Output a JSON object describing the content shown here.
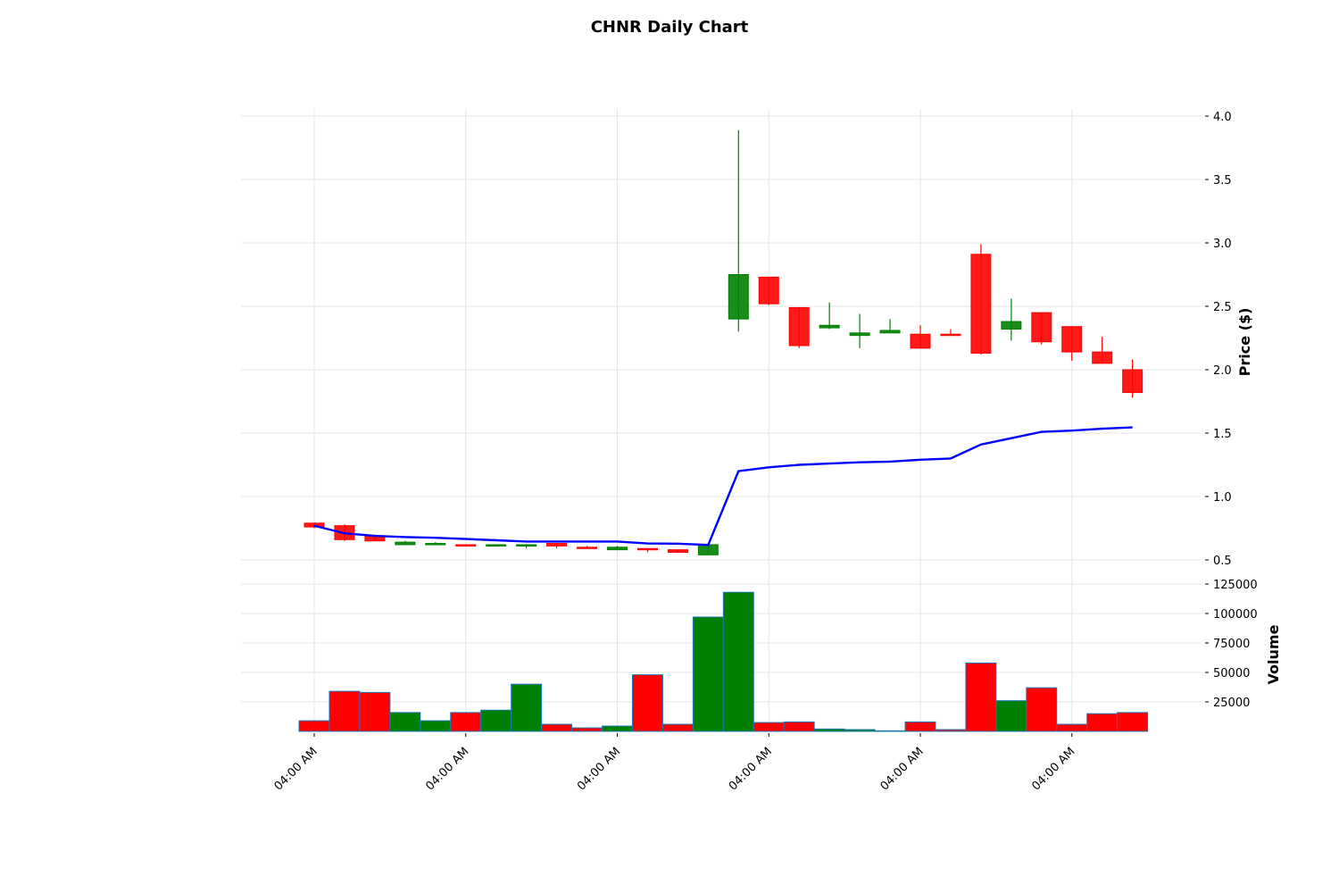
{
  "chart_data": {
    "title": "CHNR Daily Chart",
    "type": "candlestick",
    "price_axis": {
      "label": "Price ($)",
      "ylim": [
        0.5,
        4.0
      ],
      "ticks": [
        0.5,
        1.0,
        1.5,
        2.0,
        2.5,
        3.0,
        3.5,
        4.0
      ],
      "tick_labels": [
        "0.5",
        "1.0",
        "1.5",
        "2.0",
        "2.5",
        "3.0",
        "3.5",
        "4.0"
      ]
    },
    "volume_axis": {
      "label": "Volume",
      "ylim": [
        0,
        125000
      ],
      "ticks": [
        25000,
        50000,
        75000,
        100000,
        125000
      ],
      "tick_labels": [
        "25000",
        "50000",
        "75000",
        "100000",
        "125000"
      ]
    },
    "x_ticks": {
      "at_index": [
        0,
        5,
        10,
        15,
        20,
        25
      ],
      "labels": [
        "04:00 AM",
        "04:00 AM",
        "04:00 AM",
        "04:00 AM",
        "04:00 AM",
        "04:00 AM"
      ]
    },
    "candles": [
      {
        "open": 0.79,
        "high": 0.79,
        "low": 0.75,
        "close": 0.76,
        "volume": 9000,
        "direction": "down"
      },
      {
        "open": 0.77,
        "high": 0.78,
        "low": 0.65,
        "close": 0.66,
        "volume": 34000,
        "direction": "down"
      },
      {
        "open": 0.69,
        "high": 0.7,
        "low": 0.65,
        "close": 0.65,
        "volume": 33000,
        "direction": "down"
      },
      {
        "open": 0.62,
        "high": 0.65,
        "low": 0.62,
        "close": 0.64,
        "volume": 16000,
        "direction": "up"
      },
      {
        "open": 0.62,
        "high": 0.64,
        "low": 0.62,
        "close": 0.63,
        "volume": 9000,
        "direction": "up"
      },
      {
        "open": 0.62,
        "high": 0.62,
        "low": 0.61,
        "close": 0.61,
        "volume": 16000,
        "direction": "down"
      },
      {
        "open": 0.61,
        "high": 0.62,
        "low": 0.61,
        "close": 0.62,
        "volume": 18000,
        "direction": "up"
      },
      {
        "open": 0.61,
        "high": 0.62,
        "low": 0.59,
        "close": 0.62,
        "volume": 40000,
        "direction": "up"
      },
      {
        "open": 0.63,
        "high": 0.63,
        "low": 0.59,
        "close": 0.61,
        "volume": 6000,
        "direction": "down"
      },
      {
        "open": 0.6,
        "high": 0.61,
        "low": 0.59,
        "close": 0.59,
        "volume": 3000,
        "direction": "down"
      },
      {
        "open": 0.58,
        "high": 0.61,
        "low": 0.58,
        "close": 0.6,
        "volume": 4500,
        "direction": "up"
      },
      {
        "open": 0.59,
        "high": 0.59,
        "low": 0.56,
        "close": 0.58,
        "volume": 48000,
        "direction": "down"
      },
      {
        "open": 0.58,
        "high": 0.58,
        "low": 0.56,
        "close": 0.56,
        "volume": 6000,
        "direction": "down"
      },
      {
        "open": 0.54,
        "high": 0.62,
        "low": 0.54,
        "close": 0.62,
        "volume": 97000,
        "direction": "up"
      },
      {
        "open": 2.4,
        "high": 3.89,
        "low": 2.3,
        "close": 2.75,
        "volume": 118000,
        "direction": "up"
      },
      {
        "open": 2.73,
        "high": 2.73,
        "low": 2.51,
        "close": 2.52,
        "volume": 7500,
        "direction": "down"
      },
      {
        "open": 2.49,
        "high": 2.49,
        "low": 2.17,
        "close": 2.19,
        "volume": 8000,
        "direction": "down"
      },
      {
        "open": 2.33,
        "high": 2.53,
        "low": 2.32,
        "close": 2.35,
        "volume": 2000,
        "direction": "up"
      },
      {
        "open": 2.27,
        "high": 2.44,
        "low": 2.17,
        "close": 2.29,
        "volume": 1500,
        "direction": "up"
      },
      {
        "open": 2.29,
        "high": 2.4,
        "low": 2.29,
        "close": 2.31,
        "volume": 500,
        "direction": "up"
      },
      {
        "open": 2.28,
        "high": 2.35,
        "low": 2.17,
        "close": 2.17,
        "volume": 8000,
        "direction": "down"
      },
      {
        "open": 2.28,
        "high": 2.32,
        "low": 2.27,
        "close": 2.27,
        "volume": 1500,
        "direction": "down"
      },
      {
        "open": 2.91,
        "high": 2.99,
        "low": 2.12,
        "close": 2.13,
        "volume": 58000,
        "direction": "down"
      },
      {
        "open": 2.32,
        "high": 2.56,
        "low": 2.23,
        "close": 2.38,
        "volume": 26000,
        "direction": "up"
      },
      {
        "open": 2.45,
        "high": 2.45,
        "low": 2.2,
        "close": 2.22,
        "volume": 37000,
        "direction": "down"
      },
      {
        "open": 2.34,
        "high": 2.34,
        "low": 2.07,
        "close": 2.14,
        "volume": 6000,
        "direction": "down"
      },
      {
        "open": 2.14,
        "high": 2.26,
        "low": 2.05,
        "close": 2.05,
        "volume": 15000,
        "direction": "down"
      },
      {
        "open": 2.0,
        "high": 2.08,
        "low": 1.78,
        "close": 1.82,
        "volume": 16000,
        "direction": "down"
      }
    ],
    "moving_average": {
      "color": "#0000ff",
      "values": [
        0.77,
        0.71,
        0.69,
        0.68,
        0.675,
        0.665,
        0.655,
        0.645,
        0.645,
        0.645,
        0.645,
        0.63,
        0.628,
        0.618,
        1.2,
        1.23,
        1.25,
        1.26,
        1.27,
        1.275,
        1.29,
        1.3,
        1.41,
        1.46,
        1.51,
        1.52,
        1.535,
        1.545
      ]
    },
    "colors": {
      "up": "#008000",
      "down": "#ff0000",
      "volume_edge": "#1f77b4",
      "grid": "#e6e6e6"
    },
    "grid": true
  }
}
